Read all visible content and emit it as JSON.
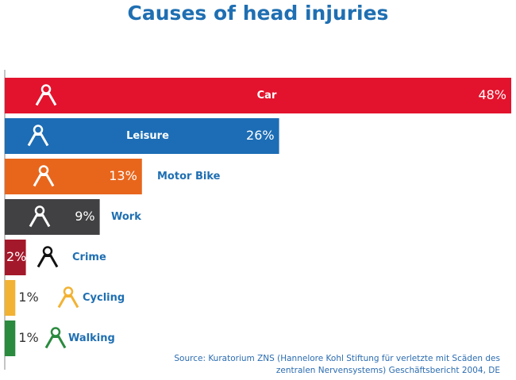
{
  "chart_data": {
    "type": "bar",
    "orientation": "horizontal",
    "title": "Causes of head injuries",
    "categories": [
      "Car",
      "Leisure",
      "Motor Bike",
      "Work",
      "Crime",
      "Cycling",
      "Walking"
    ],
    "values": [
      48,
      26,
      13,
      9,
      2,
      1,
      1
    ],
    "value_labels": [
      "48%",
      "26%",
      "13%",
      "9%",
      "2%",
      "1%",
      "1%"
    ],
    "colors": [
      "#e3132d",
      "#1c6db5",
      "#e8661c",
      "#414042",
      "#a3182a",
      "#f2b233",
      "#2a8a3e"
    ],
    "source": [
      "Source: Kuratorium ZNS (Hannelore Kohl Stiftung für verletzte mit Scäden des",
      "zentralen Nervensystems) Geschäftsbericht 2004, DE"
    ]
  }
}
